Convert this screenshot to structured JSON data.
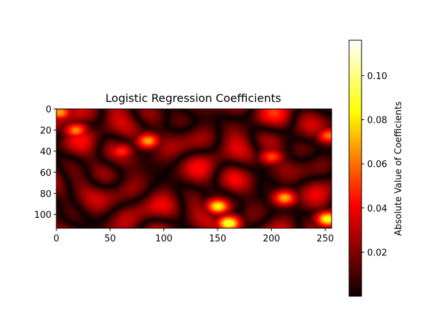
{
  "chart_data": {
    "type": "heatmap",
    "title": "Logistic Regression Coefficients",
    "colormap": "hot",
    "image_shape": [
      113,
      256
    ],
    "x_ticks": [
      0,
      50,
      100,
      150,
      200,
      250
    ],
    "y_ticks": [
      0,
      20,
      40,
      60,
      80,
      100
    ],
    "xlim": [
      0,
      256
    ],
    "ylim": [
      113,
      0
    ],
    "colorbar": {
      "label": "Absolute Value of Coefficients",
      "range": [
        0.0,
        0.116
      ],
      "ticks": [
        0.02,
        0.04,
        0.06,
        0.08,
        0.1
      ],
      "tick_labels": [
        "0.02",
        "0.04",
        "0.06",
        "0.08",
        "0.10"
      ]
    },
    "hotspots": [
      {
        "x": 150,
        "y": 92,
        "value": 0.085
      },
      {
        "x": 212,
        "y": 84,
        "value": 0.072
      },
      {
        "x": 18,
        "y": 20,
        "value": 0.065
      },
      {
        "x": 85,
        "y": 30,
        "value": 0.07
      },
      {
        "x": 160,
        "y": 108,
        "value": 0.095
      },
      {
        "x": 252,
        "y": 104,
        "value": 0.09
      },
      {
        "x": 60,
        "y": 40,
        "value": 0.05
      },
      {
        "x": 200,
        "y": 45,
        "value": 0.055
      },
      {
        "x": 3,
        "y": 3,
        "value": 0.07
      },
      {
        "x": 253,
        "y": 25,
        "value": 0.06
      }
    ]
  }
}
